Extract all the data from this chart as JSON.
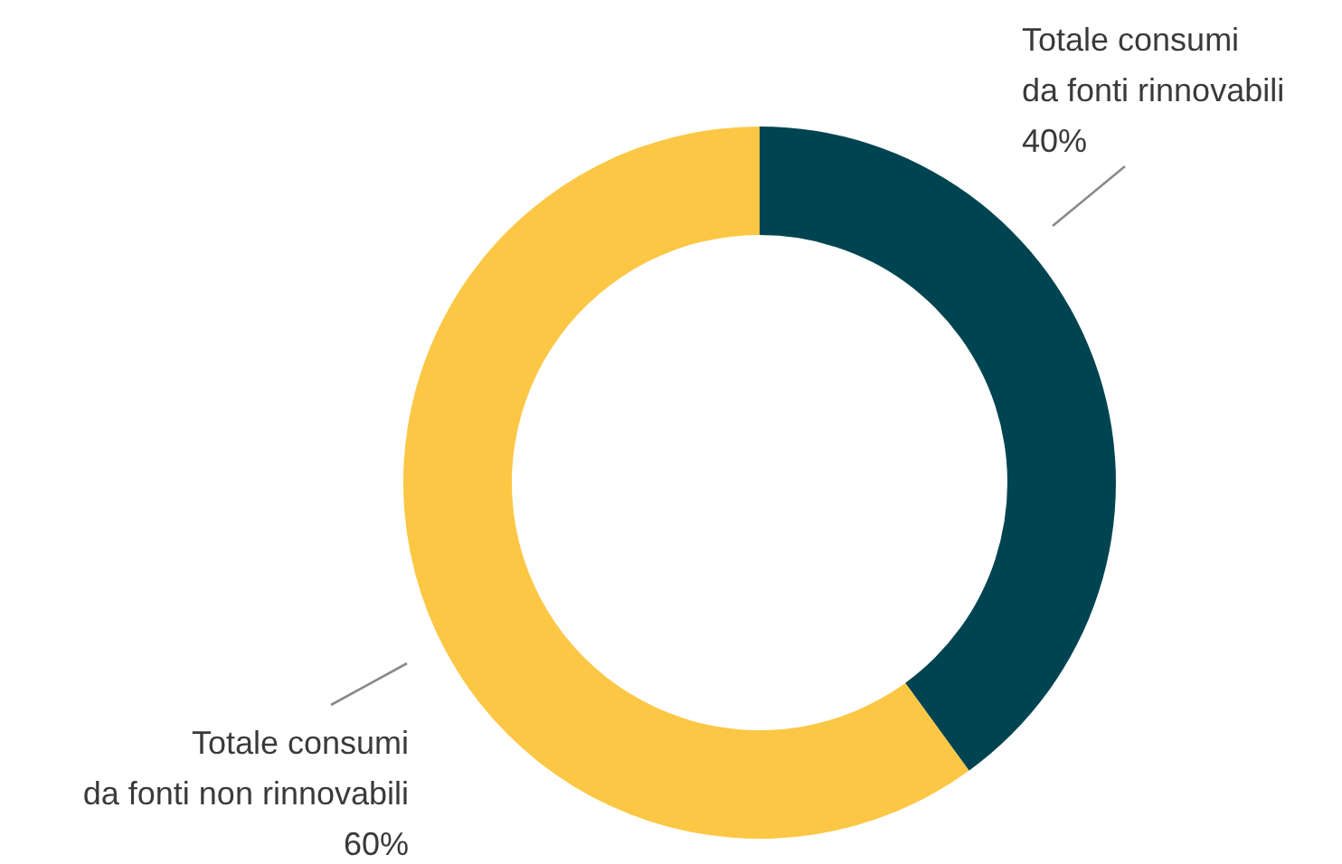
{
  "chart_data": {
    "type": "donut",
    "categories": [
      "Totale consumi da fonti rinnovabili",
      "Totale consumi da fonti non rinnovabili"
    ],
    "values": [
      40,
      60
    ],
    "colors": [
      "#014451",
      "#fcc745"
    ],
    "value_labels": [
      "40%",
      "60%"
    ],
    "legend": false
  }
}
